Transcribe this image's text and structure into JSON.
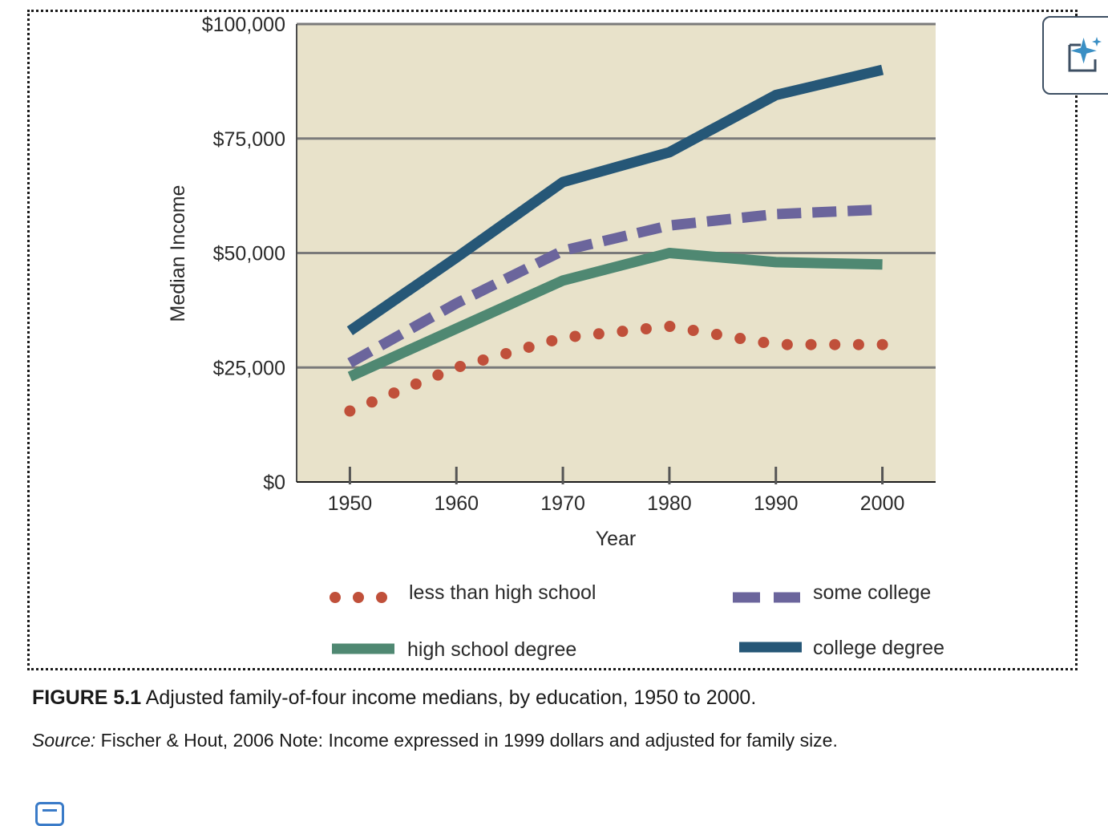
{
  "chart_data": {
    "type": "line",
    "xlabel": "Year",
    "ylabel": "Median Income",
    "x": [
      1950,
      1960,
      1970,
      1980,
      1990,
      2000
    ],
    "xlim": [
      1945,
      2005
    ],
    "ylim": [
      0,
      100000
    ],
    "yticks": [
      0,
      25000,
      50000,
      75000,
      100000
    ],
    "ytick_labels": [
      "$0",
      "$25,000",
      "$50,000",
      "$75,000",
      "$100,000"
    ],
    "xtick_labels": [
      "1950",
      "1960",
      "1970",
      "1980",
      "1990",
      "2000"
    ],
    "grid": true,
    "series": [
      {
        "name": "less than high school",
        "values": [
          15500,
          25000,
          31500,
          34000,
          30000,
          30000
        ],
        "color": "#c0503a",
        "style": "dotted"
      },
      {
        "name": "some college",
        "values": [
          26000,
          39000,
          50500,
          56000,
          58500,
          59500
        ],
        "color": "#6b659c",
        "style": "dashed"
      },
      {
        "name": "high school degree",
        "values": [
          23000,
          33500,
          44000,
          50000,
          48000,
          47500
        ],
        "color": "#4f8872",
        "style": "solid"
      },
      {
        "name": "college degree",
        "values": [
          33000,
          49000,
          65500,
          72000,
          84500,
          90000
        ],
        "color": "#265777",
        "style": "solid"
      }
    ],
    "legend_placement": "bottom",
    "plot_background": "#e8e2ca"
  },
  "caption": {
    "figure_number": "FIGURE 5.1",
    "text": " Adjusted family-of-four income medians, by education, 1950 to 2000."
  },
  "source": {
    "label": "Source:",
    "text": " Fischer & Hout, 2006 Note: Income expressed in 1999 dollars and adjusted for family size."
  },
  "icons": {
    "ai_button": "sparkle-edit-icon",
    "bottom": "document-icon"
  }
}
